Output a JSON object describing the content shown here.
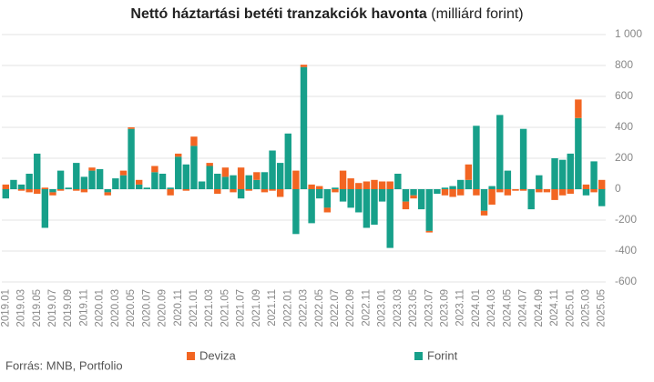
{
  "chart_data": {
    "type": "stacked_bar",
    "title": "Nettó háztartási betéti tranzakciók havonta",
    "title_unit": "(milliárd forint)",
    "source": "Forrás: MNB, Portfolio",
    "categories": [
      "2019.01",
      null,
      "2019.03",
      null,
      "2019.05",
      null,
      "2019.07",
      null,
      "2019.09",
      null,
      "2019.11",
      null,
      "2020.01",
      null,
      "2020.03",
      null,
      "2020.05",
      null,
      "2020.07",
      null,
      "2020.09",
      null,
      "2020.11",
      null,
      "2021.01",
      null,
      "2021.03",
      null,
      "2021.05",
      null,
      "2021.07",
      null,
      "2021.09",
      null,
      "2021.11",
      null,
      "2022.01",
      null,
      "2022.03",
      null,
      "2022.05",
      null,
      "2022.07",
      null,
      "2022.09",
      null,
      "2022.11",
      null,
      "2023.01",
      null,
      "2023.03",
      null,
      "2023.05",
      null,
      "2023.07",
      null,
      "2023.09",
      null,
      "2023.11",
      null,
      "2024.01",
      null,
      "2024.03",
      null,
      "2024.05",
      null,
      "2024.07",
      null,
      "2024.09",
      null,
      "2024.11",
      null,
      "2025.01",
      null,
      "2025.03",
      null,
      "2025.05"
    ],
    "series": [
      {
        "name": "Deviza",
        "color": "#f26522",
        "values": [
          30,
          0,
          -10,
          -20,
          -30,
          10,
          -20,
          -10,
          0,
          -10,
          -20,
          20,
          0,
          -20,
          0,
          30,
          10,
          30,
          0,
          40,
          0,
          -40,
          20,
          -10,
          60,
          0,
          20,
          -30,
          60,
          -20,
          140,
          -10,
          50,
          -20,
          -10,
          -50,
          0,
          120,
          15,
          30,
          20,
          -30,
          -20,
          120,
          70,
          40,
          50,
          60,
          50,
          50,
          0,
          -50,
          -20,
          0,
          -10,
          0,
          -40,
          -50,
          -40,
          100,
          -40,
          -30,
          -100,
          -20,
          -40,
          -10,
          -10,
          0,
          -20,
          -20,
          -70,
          -40,
          -30,
          120,
          30,
          -20,
          60
        ]
      },
      {
        "name": "Forint",
        "color": "#17a08a",
        "values": [
          -60,
          60,
          30,
          100,
          230,
          -250,
          -20,
          120,
          10,
          170,
          80,
          120,
          130,
          -20,
          70,
          90,
          390,
          30,
          10,
          110,
          100,
          10,
          210,
          160,
          280,
          50,
          150,
          100,
          80,
          90,
          -60,
          90,
          60,
          110,
          250,
          170,
          360,
          -290,
          790,
          -220,
          -60,
          -120,
          10,
          -80,
          -120,
          -150,
          -250,
          -230,
          -80,
          -380,
          100,
          -80,
          -40,
          -130,
          -270,
          -30,
          10,
          20,
          60,
          60,
          410,
          -140,
          20,
          480,
          120,
          0,
          390,
          -130,
          90,
          0,
          200,
          190,
          230,
          460,
          -40,
          180,
          -110
        ]
      }
    ],
    "ylim": [
      -600,
      1000
    ],
    "yticks": [
      -600,
      -400,
      -200,
      0,
      200,
      400,
      600,
      800,
      {
        "value": 1000,
        "label": "1 000"
      }
    ],
    "grid": true
  }
}
